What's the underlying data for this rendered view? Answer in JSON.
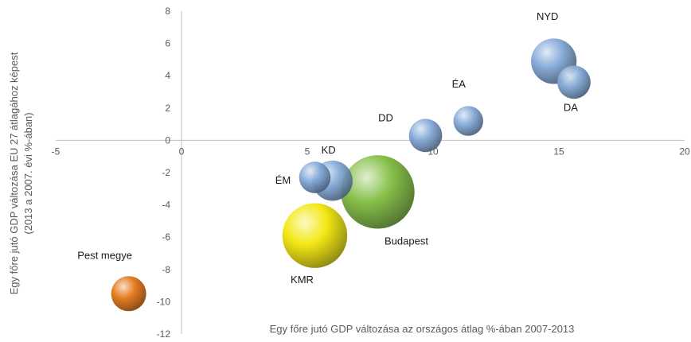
{
  "chart_data": {
    "type": "bubble",
    "title": "",
    "xlabel": "Egy főre jutó GDP változása az országos átlag %-ában 2007-2013",
    "ylabel_line1": "Egy főre jutó GDP változása EU 27 átlagához képest",
    "ylabel_line2": "(2013 a 2007. évi %-ában)",
    "xlim": [
      -5,
      20
    ],
    "ylim": [
      -12,
      8
    ],
    "x_ticks": [
      -5,
      0,
      5,
      10,
      15,
      20
    ],
    "y_ticks": [
      8,
      6,
      4,
      2,
      0,
      -2,
      -4,
      -6,
      -8,
      -10,
      -12
    ],
    "grid": false,
    "legend": "none",
    "series": [
      {
        "label": "NYD",
        "x": 14.8,
        "y": 4.9,
        "size": 1.3,
        "color": "#7fa6d6"
      },
      {
        "label": "DA",
        "x": 15.6,
        "y": 3.6,
        "size": 0.95,
        "color": "#7fa6d6"
      },
      {
        "label": "ÉA",
        "x": 11.4,
        "y": 1.2,
        "size": 0.85,
        "color": "#7fa6d6"
      },
      {
        "label": "DD",
        "x": 9.7,
        "y": 0.3,
        "size": 0.95,
        "color": "#7fa6d6"
      },
      {
        "label": "KD",
        "x": 6.0,
        "y": -2.5,
        "size": 1.15,
        "color": "#7fa6d6"
      },
      {
        "label": "ÉM",
        "x": 5.3,
        "y": -2.3,
        "size": 0.9,
        "color": "#7fa6d6"
      },
      {
        "label": "Budapest",
        "x": 7.8,
        "y": -3.2,
        "size": 2.1,
        "color": "#7dbb3a"
      },
      {
        "label": "KMR",
        "x": 5.3,
        "y": -5.9,
        "size": 1.85,
        "color": "#f2e600"
      },
      {
        "label": "Pest megye",
        "x": -2.1,
        "y": -9.5,
        "size": 1.0,
        "color": "#e2700b"
      }
    ]
  }
}
